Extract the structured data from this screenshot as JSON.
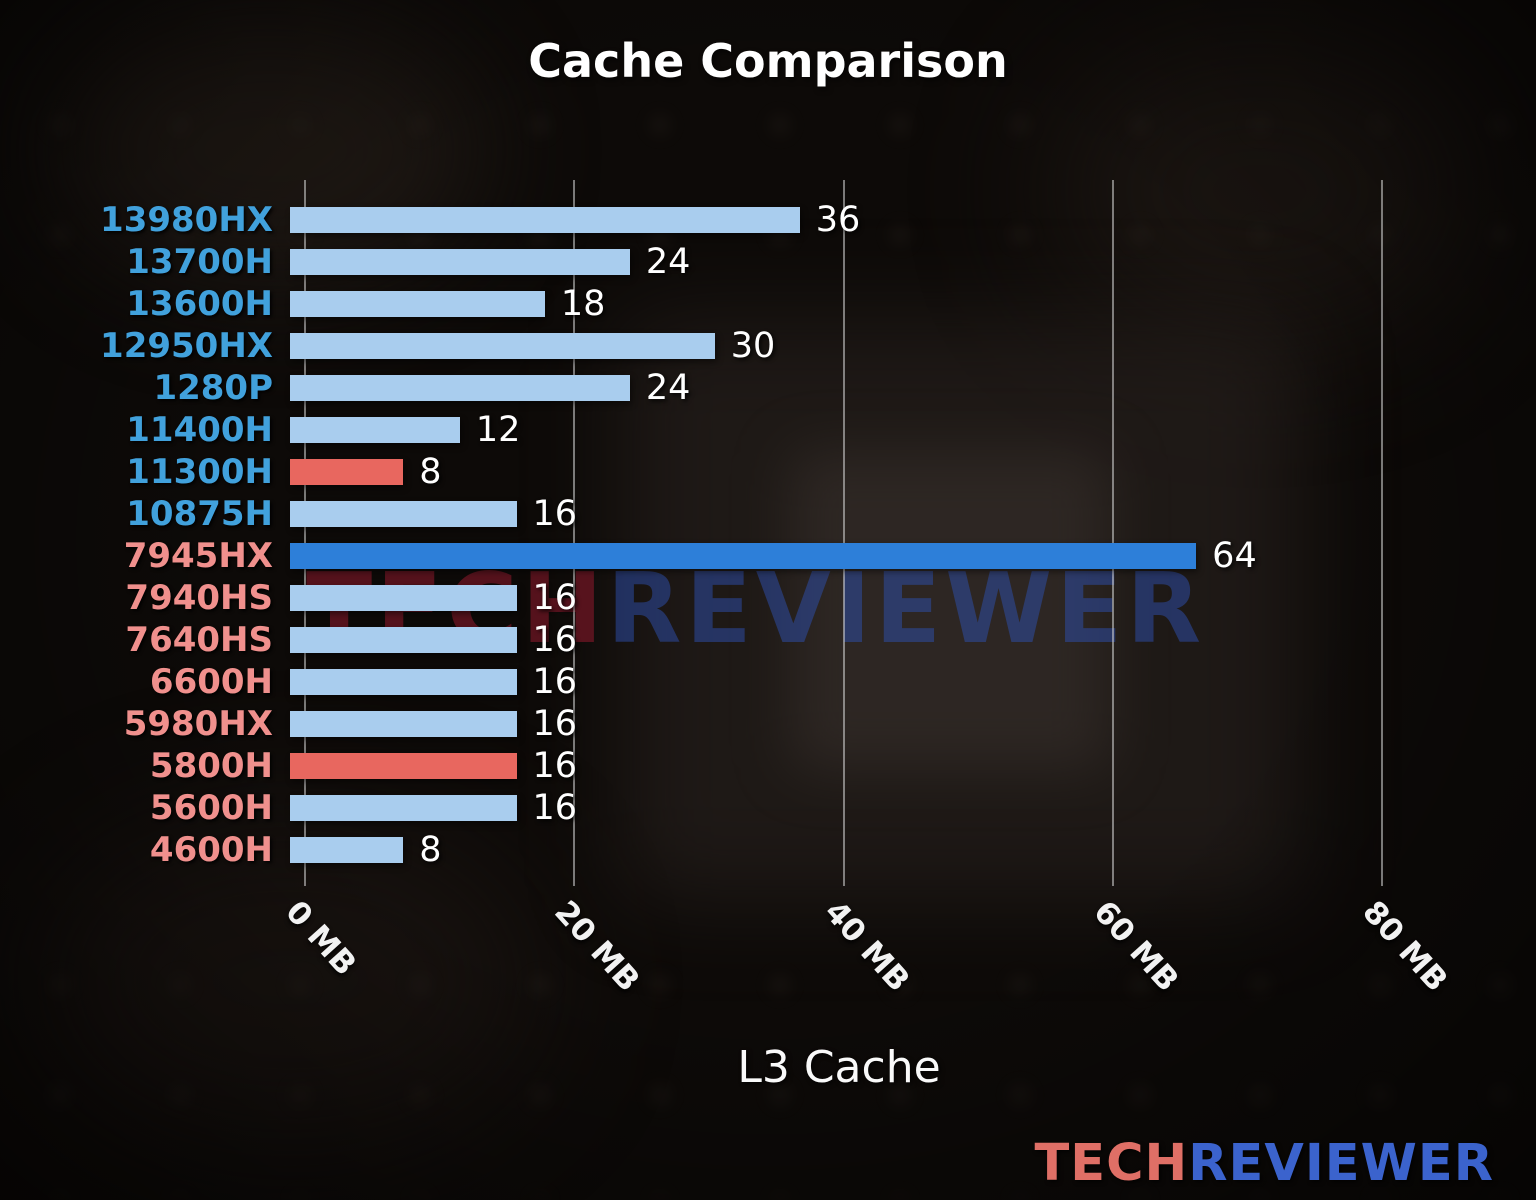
{
  "watermark": {
    "tech": "TECH",
    "reviewer": "REVIEWER"
  },
  "logo": {
    "tech": "TECH",
    "reviewer": "REVIEWER"
  },
  "colors": {
    "bar_default": "#a9cdee",
    "bar_highlight_red": "#e8675f",
    "bar_highlight_blue": "#2d7fd9",
    "label_blue": "#41a1dc",
    "label_salmon": "#f0908d",
    "value_text": "#ffffff",
    "logo_tech": "#df6f66",
    "logo_reviewer": "#3b63cd"
  },
  "chart_data": {
    "type": "bar",
    "orientation": "horizontal",
    "title": "Cache Comparison",
    "xlabel": "L3 Cache",
    "xlim": [
      0,
      88
    ],
    "grid": true,
    "legend": null,
    "x_ticks": [
      {
        "value": 0,
        "label": "0 MB"
      },
      {
        "value": 20,
        "label": "20 MB"
      },
      {
        "value": 40,
        "label": "40 MB"
      },
      {
        "value": 60,
        "label": "60 MB"
      },
      {
        "value": 80,
        "label": "80 MB"
      }
    ],
    "bars": [
      {
        "label": "13980HX",
        "value": 36,
        "bar_color": "#a9cdee",
        "label_color": "#41a1dc"
      },
      {
        "label": "13700H",
        "value": 24,
        "bar_color": "#a9cdee",
        "label_color": "#41a1dc"
      },
      {
        "label": "13600H",
        "value": 18,
        "bar_color": "#a9cdee",
        "label_color": "#41a1dc"
      },
      {
        "label": "12950HX",
        "value": 30,
        "bar_color": "#a9cdee",
        "label_color": "#41a1dc"
      },
      {
        "label": "1280P",
        "value": 24,
        "bar_color": "#a9cdee",
        "label_color": "#41a1dc"
      },
      {
        "label": "11400H",
        "value": 12,
        "bar_color": "#a9cdee",
        "label_color": "#41a1dc"
      },
      {
        "label": "11300H",
        "value": 8,
        "bar_color": "#e8675f",
        "label_color": "#41a1dc"
      },
      {
        "label": "10875H",
        "value": 16,
        "bar_color": "#a9cdee",
        "label_color": "#41a1dc"
      },
      {
        "label": "7945HX",
        "value": 64,
        "bar_color": "#2d7fd9",
        "label_color": "#f0908d"
      },
      {
        "label": "7940HS",
        "value": 16,
        "bar_color": "#a9cdee",
        "label_color": "#f0908d"
      },
      {
        "label": "7640HS",
        "value": 16,
        "bar_color": "#a9cdee",
        "label_color": "#f0908d"
      },
      {
        "label": "6600H",
        "value": 16,
        "bar_color": "#a9cdee",
        "label_color": "#f0908d"
      },
      {
        "label": "5980HX",
        "value": 16,
        "bar_color": "#a9cdee",
        "label_color": "#f0908d"
      },
      {
        "label": "5800H",
        "value": 16,
        "bar_color": "#e8675f",
        "label_color": "#f0908d"
      },
      {
        "label": "5600H",
        "value": 16,
        "bar_color": "#a9cdee",
        "label_color": "#f0908d"
      },
      {
        "label": "4600H",
        "value": 8,
        "bar_color": "#a9cdee",
        "label_color": "#f0908d"
      }
    ]
  }
}
